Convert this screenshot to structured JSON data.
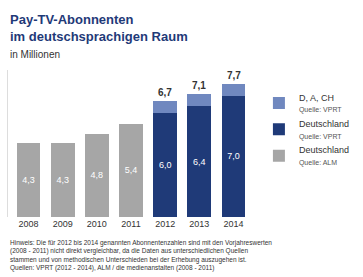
{
  "chart_data": {
    "type": "bar",
    "title": "Pay-TV-Abonnenten\nim deutschsprachigen Raum",
    "subtitle": "in Millionen",
    "categories": [
      "2008",
      "2009",
      "2010",
      "2011",
      "2012",
      "2013",
      "2014"
    ],
    "stacked": true,
    "data_labels": true,
    "tick_labels": "x",
    "legend": "right",
    "ylim": [
      0,
      8.5
    ],
    "series": [
      {
        "name": "Deutschland",
        "source": "Quelle: ALM",
        "color": "#a6a6a6",
        "values": [
          4.3,
          4.3,
          4.8,
          5.4,
          null,
          null,
          null
        ],
        "value_labels": [
          "4,3",
          "4,3",
          "4,8",
          "5,4",
          null,
          null,
          null
        ]
      },
      {
        "name": "Deutschland",
        "source": "Quelle: VPRT",
        "color": "#1f3a78",
        "values": [
          null,
          null,
          null,
          null,
          6.0,
          6.4,
          7.0
        ],
        "value_labels": [
          null,
          null,
          null,
          null,
          "6,0",
          "6,4",
          "7,0"
        ]
      },
      {
        "name": "D, A, CH",
        "source": "Quelle: VPRT",
        "color": "#7088bf",
        "values": [
          null,
          null,
          null,
          null,
          0.7,
          0.7,
          0.7
        ]
      }
    ],
    "annotations": [
      {
        "x": "2012",
        "y": 6.7,
        "text": "6,7"
      },
      {
        "x": "2013",
        "y": 7.1,
        "text": "7,1"
      },
      {
        "x": "2014",
        "y": 7.7,
        "text": "7,7"
      }
    ],
    "note": [
      "Hinweis: Die für 2012 bis 2014 genannten Abonnentenzahlen sind mit den Vorjahreswerten",
      "(2008 - 2011) nicht direkt vergleichbar, da die Daten aus unterschiedlichen Quellen",
      "stammen und von methodischen Unterschieden bei der Erhebung auszugehen ist.",
      "Quellen: VPRT (2012 - 2014), ALM / die medienanstalten (2008 - 2011)"
    ]
  }
}
